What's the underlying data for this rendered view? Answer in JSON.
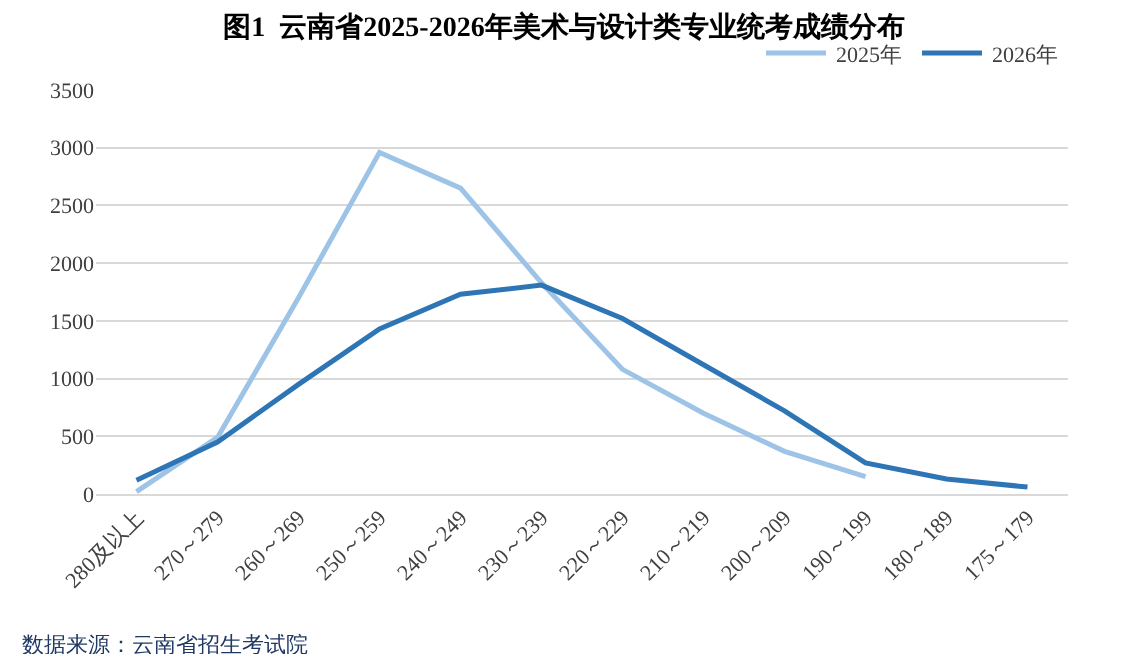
{
  "chart_data": {
    "type": "line",
    "title": "图1  云南省2025-2026年美术与设计类专业统考成绩分布",
    "categories": [
      "280及以上",
      "270～279",
      "260～269",
      "250～259",
      "240～249",
      "230～239",
      "220～229",
      "210～219",
      "200～209",
      "190～199",
      "180～189",
      "175～179"
    ],
    "series": [
      {
        "name": "2025年",
        "color": "#9dc3e6",
        "values": [
          20,
          490,
          1700,
          2960,
          2650,
          1830,
          1080,
          700,
          370,
          150,
          null,
          null
        ]
      },
      {
        "name": "2026年",
        "color": "#2e75b6",
        "values": [
          120,
          450,
          950,
          1430,
          1730,
          1810,
          1520,
          1120,
          720,
          270,
          130,
          60
        ]
      }
    ],
    "ylim": [
      0,
      3500
    ],
    "yticks": [
      0,
      500,
      1000,
      1500,
      2000,
      2500,
      3000,
      3500
    ],
    "grid": "y",
    "legend": "top right",
    "marker": "none",
    "line_style": "solid",
    "annotations": [
      "数据来源：云南省招生考试院"
    ]
  }
}
